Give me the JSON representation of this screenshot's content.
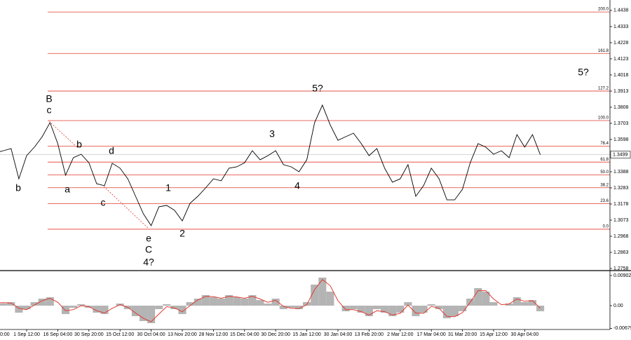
{
  "chart_data": [
    {
      "type": "line",
      "color": "#000000",
      "categories": [
        "0:00",
        null,
        null,
        null,
        "1 Sep 12:00",
        null,
        null,
        null,
        "16 Sep 04:00",
        null,
        null,
        null,
        "30 Sep 20:00",
        null,
        null,
        null,
        "15 Oct 12:00",
        null,
        null,
        null,
        "30 Oct 04:00",
        null,
        null,
        null,
        "13 Nov 20:00",
        null,
        null,
        null,
        "28 Nov 12:00",
        null,
        null,
        null,
        "15 Dec 04:00",
        null,
        null,
        null,
        "30 Dec 20:00",
        null,
        null,
        null,
        "15 Jan 12:00",
        null,
        null,
        null,
        "30 Jan 04:00",
        null,
        null,
        null,
        "13 Feb 20:00",
        null,
        null,
        null,
        "2 Mar 12:00",
        null,
        null,
        null,
        "17 Mar 04:00",
        null,
        null,
        null,
        "31 Mar 20:00",
        null,
        null,
        null,
        "15 Apr 12:00",
        null,
        null,
        null,
        "30 Apr 04:00",
        null,
        null
      ],
      "values": [
        1.3511,
        1.3525,
        1.3539,
        1.3342,
        1.3493,
        1.3548,
        1.3616,
        1.3708,
        1.3571,
        1.3365,
        1.3479,
        1.3502,
        1.3447,
        1.331,
        1.3297,
        1.3443,
        1.3411,
        1.3342,
        1.3228,
        1.3114,
        1.3037,
        1.316,
        1.3169,
        1.3137,
        1.3068,
        1.3183,
        1.3228,
        1.3283,
        1.3342,
        1.3329,
        1.3411,
        1.342,
        1.3447,
        1.3525,
        1.3466,
        1.3493,
        1.3525,
        1.3434,
        1.342,
        1.3388,
        1.3466,
        1.3708,
        1.3822,
        1.3694,
        1.3593,
        1.3616,
        1.3639,
        1.3571,
        1.3493,
        1.3539,
        1.3411,
        1.332,
        1.3342,
        1.3434,
        1.3228,
        1.3297,
        1.3411,
        1.3342,
        1.3205,
        1.3205,
        1.3274,
        1.3447,
        1.3571,
        1.3548,
        1.3502,
        1.3525,
        1.3479,
        1.363,
        1.3548,
        1.363,
        1.3499
      ],
      "ylim": [
        1.2749,
        1.4506
      ],
      "yticks": [
        1.4438,
        1.4333,
        1.4228,
        1.4123,
        1.4018,
        1.3913,
        1.3808,
        1.3703,
        1.3598,
        1.3388,
        1.3283,
        1.3178,
        1.3073,
        1.2968,
        1.2863,
        1.2758
      ],
      "last_price": 1.3499,
      "fib_color": "#e03a2f",
      "fib_levels": [
        {
          "level": {
            "value": 0,
            "label": "0.0"
          },
          "price": 1.3014
        },
        {
          "level": 23.6,
          "price": 1.3181
        },
        {
          "level": 38.2,
          "price": 1.3284
        },
        {
          "level": {
            "value": 50,
            "label": "50.0"
          },
          "price": 1.3368
        },
        {
          "level": 61.8,
          "price": 1.3451
        },
        {
          "level": 76.4,
          "price": 1.3554
        },
        {
          "level": {
            "value": 100,
            "label": "100.0"
          },
          "price": 1.3721
        },
        {
          "level": 127.2,
          "price": 1.3913
        },
        {
          "level": 161.8,
          "price": 1.4158
        },
        {
          "level": {
            "value": 200,
            "label": "200.0"
          },
          "price": 1.4428
        }
      ],
      "annotations": [
        {
          "text": "B",
          "color": "#e03a2f"
        },
        {
          "text": "c",
          "color": "#e03a2f"
        },
        {
          "text": "b",
          "color": "#e03a2f"
        },
        {
          "text": "a",
          "color": "#e03a2f"
        },
        {
          "text": "b",
          "color": "#e03a2f"
        },
        {
          "text": "c",
          "color": "#e03a2f"
        },
        {
          "text": "d",
          "color": "#e03a2f"
        },
        {
          "text": "e",
          "color": "#e03a2f"
        },
        {
          "text": "C",
          "color": "#e03a2f"
        },
        {
          "text": "1",
          "color": "#e03a2f"
        },
        {
          "text": "2",
          "color": "#e03a2f"
        },
        {
          "text": "3",
          "color": "#e03a2f"
        },
        {
          "text": "4",
          "color": "#e03a2f"
        },
        {
          "text": "5?",
          "color": "#e03a2f"
        },
        {
          "text": "4?",
          "color": "#1a1ad0"
        },
        {
          "text": "5?",
          "color": "#1a1ad0"
        }
      ]
    },
    {
      "type": "oscillator",
      "series": [
        {
          "type": "bar",
          "color": "#b4b4b4",
          "values": [
            0.00105,
            0.00063,
            0.00105,
            -0.0021,
            -0.00105,
            0.00105,
            0.0021,
            0.00252,
            0,
            -0.00252,
            -0.00063,
            0.00042,
            -0.00063,
            -0.0021,
            -0.00252,
            0,
            0.00063,
            -0.00105,
            -0.00315,
            -0.00462,
            -0.00525,
            -0.00105,
            0.00042,
            -0.00105,
            -0.00252,
            0.00105,
            0.0021,
            0.00315,
            0.00252,
            0.0021,
            0.00315,
            0.00252,
            0.0021,
            0.00315,
            0.00168,
            0.00063,
            0.0021,
            -0.00105,
            -0.00063,
            -0.00105,
            0.00105,
            0.0063,
            0.0084,
            0.0042,
            0,
            -0.00168,
            -0.00105,
            -0.0021,
            -0.00315,
            -0.00105,
            -0.0021,
            -0.00315,
            -0.0021,
            0.00105,
            -0.00315,
            -0.0021,
            0.00042,
            -0.00105,
            -0.00378,
            -0.00315,
            -0.00168,
            0.0021,
            0.00525,
            0.0042,
            0.00105,
            0,
            0.00063,
            0.00252,
            0.00105,
            0.00168,
            -0.00168
          ]
        },
        {
          "type": "line",
          "color": "#e03a2f",
          "values": [
            0.0008,
            0.0009,
            0.0008,
            -0.0008,
            -0.0012,
            0.0002,
            0.0015,
            0.0022,
            0.001,
            -0.0015,
            -0.0012,
            0,
            -0.0003,
            -0.0015,
            -0.0022,
            -0.0008,
            0.0003,
            -0.0005,
            -0.0022,
            -0.0038,
            -0.0048,
            -0.0025,
            -0.0003,
            -0.0007,
            -0.0018,
            0,
            0.0017,
            0.0028,
            0.0027,
            0.0022,
            0.0028,
            0.0026,
            0.0022,
            0.0028,
            0.002,
            0.001,
            0.0016,
            -0.0002,
            -0.0008,
            -0.0009,
            0.0003,
            0.0048,
            0.0078,
            0.006,
            0.0015,
            -0.0012,
            -0.0012,
            -0.0018,
            -0.0028,
            -0.0015,
            -0.0018,
            -0.0028,
            -0.0023,
            0.0002,
            -0.0022,
            -0.0023,
            -0.0002,
            -0.0008,
            -0.0032,
            -0.0033,
            -0.0021,
            0.001,
            0.0045,
            0.0045,
            0.002,
            0.0003,
            0.0005,
            0.002,
            0.0013,
            0.0015,
            -0.0008
          ]
        }
      ],
      "ylim": [
        -0.00713,
        0.01007
      ],
      "yticks": [
        0.00902,
        {
          "value": 0,
          "label": "0.00"
        },
        -0.00679
      ]
    }
  ]
}
